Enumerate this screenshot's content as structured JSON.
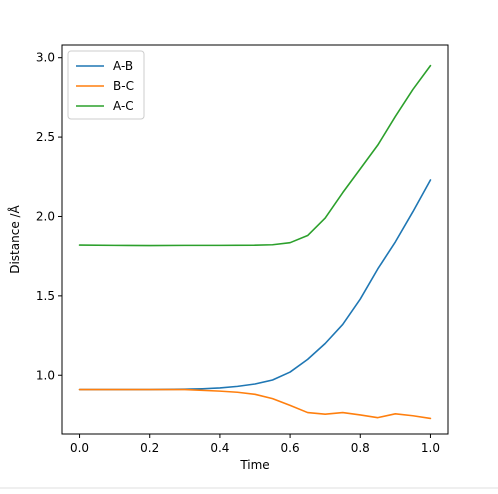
{
  "chart_data": {
    "type": "line",
    "title": "",
    "xlabel": "Time",
    "ylabel": "Distance /Å",
    "xlim": [
      -0.05,
      1.05
    ],
    "ylim": [
      0.63,
      3.08
    ],
    "xticks": [
      0.0,
      0.2,
      0.4,
      0.6,
      0.8,
      1.0
    ],
    "xtick_labels": [
      "0.0",
      "0.2",
      "0.4",
      "0.6",
      "0.8",
      "1.0"
    ],
    "yticks": [
      1.0,
      1.5,
      2.0,
      2.5,
      3.0
    ],
    "ytick_labels": [
      "1.0",
      "1.5",
      "2.0",
      "2.5",
      "3.0"
    ],
    "grid": false,
    "legend_position": "top-left",
    "series": [
      {
        "name": "A-B",
        "color": "#1f77b4",
        "x": [
          0.0,
          0.1,
          0.2,
          0.3,
          0.35,
          0.4,
          0.45,
          0.5,
          0.55,
          0.6,
          0.65,
          0.7,
          0.75,
          0.8,
          0.85,
          0.9,
          0.95,
          1.0
        ],
        "y": [
          0.91,
          0.91,
          0.91,
          0.912,
          0.915,
          0.92,
          0.93,
          0.945,
          0.97,
          1.02,
          1.1,
          1.2,
          1.32,
          1.48,
          1.67,
          1.84,
          2.03,
          2.23
        ]
      },
      {
        "name": "B-C",
        "color": "#ff7f0e",
        "x": [
          0.0,
          0.1,
          0.2,
          0.3,
          0.4,
          0.45,
          0.5,
          0.55,
          0.6,
          0.65,
          0.7,
          0.75,
          0.8,
          0.85,
          0.9,
          0.95,
          1.0
        ],
        "y": [
          0.91,
          0.91,
          0.91,
          0.91,
          0.9,
          0.893,
          0.88,
          0.853,
          0.81,
          0.765,
          0.755,
          0.765,
          0.75,
          0.733,
          0.757,
          0.745,
          0.728
        ]
      },
      {
        "name": "A-C",
        "color": "#2ca02c",
        "x": [
          0.0,
          0.1,
          0.2,
          0.3,
          0.4,
          0.5,
          0.55,
          0.6,
          0.65,
          0.7,
          0.75,
          0.8,
          0.85,
          0.9,
          0.95,
          1.0
        ],
        "y": [
          1.82,
          1.818,
          1.817,
          1.818,
          1.818,
          1.819,
          1.822,
          1.835,
          1.88,
          1.99,
          2.15,
          2.3,
          2.45,
          2.63,
          2.8,
          2.95
        ]
      }
    ]
  }
}
